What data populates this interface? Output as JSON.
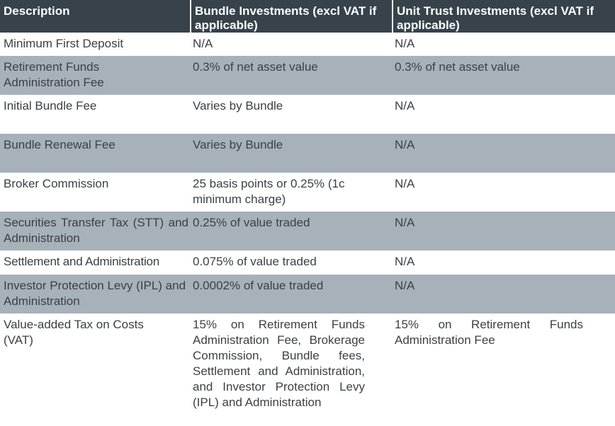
{
  "table": {
    "headers": [
      "Description",
      "Bundle Investments (excl VAT if applicable)",
      "Unit Trust Investments (excl VAT if applicable)"
    ],
    "rows": [
      [
        "Minimum First Deposit",
        "N/A",
        "N/A"
      ],
      [
        "Retirement Funds Administration Fee",
        "0.3% of net asset value",
        "0.3% of net asset value"
      ],
      [
        "Initial Bundle Fee",
        "Varies by Bundle",
        "N/A"
      ],
      [
        "Bundle Renewal Fee",
        "Varies by Bundle",
        "N/A"
      ],
      [
        "Broker Commission",
        "25 basis points or 0.25% (1c minimum charge)",
        "N/A"
      ],
      [
        "Securities Transfer Tax (STT) and Administration",
        "0.25% of value traded",
        "N/A"
      ],
      [
        "Settlement and Administration",
        "0.075% of value traded",
        "N/A"
      ],
      [
        "Investor Protection Levy (IPL) and Administration",
        "0.0002% of value traded",
        "N/A"
      ],
      [
        "Value-added Tax on Costs (VAT)",
        "15% on Retirement Funds Administration Fee, Brokerage Commission, Bundle fees, Settlement and Administration, and Investor Protection Levy (IPL) and Administration",
        "15% on Retirement Funds Administration Fee"
      ]
    ]
  },
  "colors": {
    "header_bg": "#37424a",
    "header_text": "#ffffff",
    "row_alt_bg": "#a7b1ba",
    "row_bg": "#ffffff",
    "body_text": "#3b4045"
  }
}
